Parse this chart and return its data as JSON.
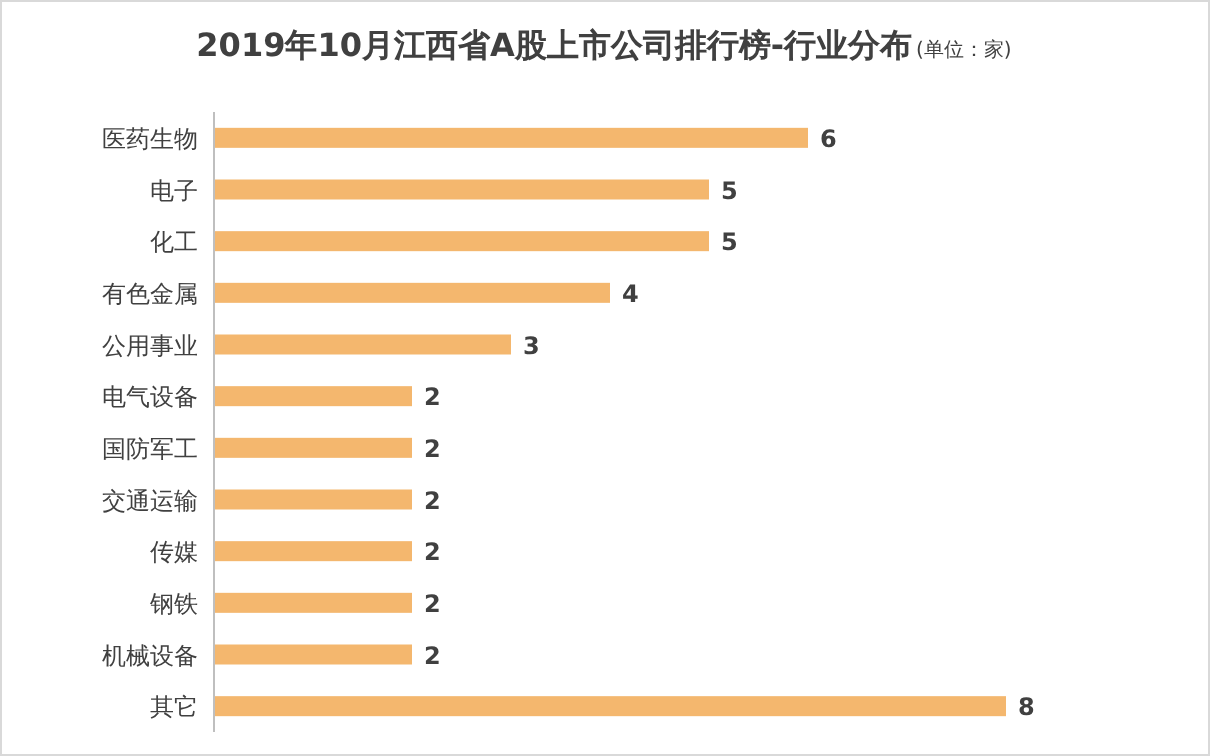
{
  "chart_data": {
    "type": "bar",
    "orientation": "horizontal",
    "title": "2019年10月江西省A股上市公司排行榜-行业分布",
    "subtitle": "(单位：家)",
    "categories": [
      "医药生物",
      "电子",
      "化工",
      "有色金属",
      "公用事业",
      "电气设备",
      "国防军工",
      "交通运输",
      "传媒",
      "钢铁",
      "机械设备",
      "其它"
    ],
    "values": [
      6,
      5,
      5,
      4,
      3,
      2,
      2,
      2,
      2,
      2,
      2,
      8
    ],
    "color": "#f4b76e",
    "data_labels": true
  }
}
